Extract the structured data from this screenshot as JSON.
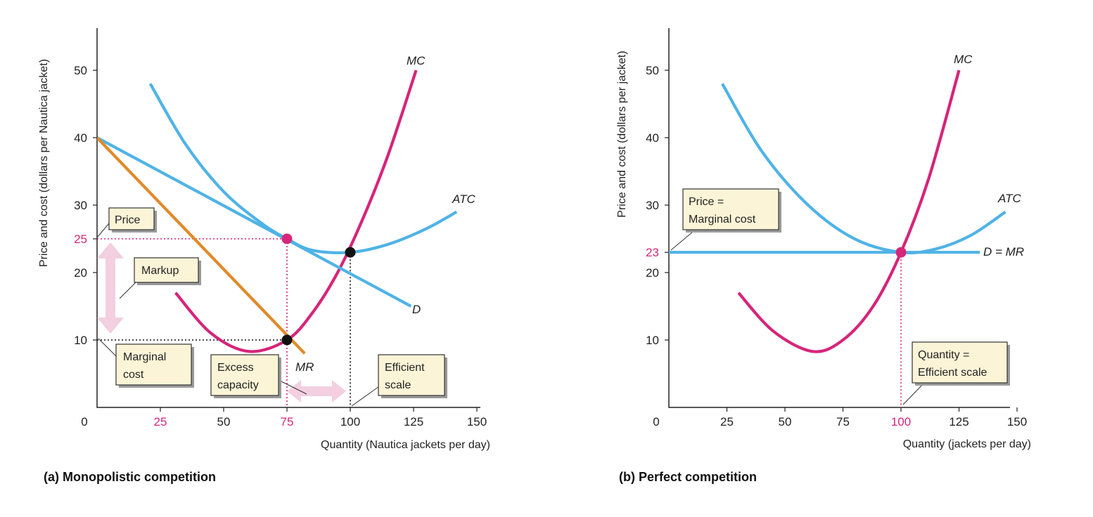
{
  "chart_data": [
    {
      "type": "line",
      "panel_caption": "(a) Monopolistic competition",
      "xlabel": "Quantity (Nautica jackets per day)",
      "ylabel": "Price and cost (dollars per Nautica jacket)",
      "xlim": [
        0,
        150
      ],
      "ylim": [
        0,
        55
      ],
      "x_ticks": [
        "0",
        "25",
        "50",
        "75",
        "100",
        "125",
        "150"
      ],
      "y_ticks": [
        "10",
        "20",
        "25",
        "30",
        "40",
        "50"
      ],
      "highlighted_ticks": [
        "75",
        "25"
      ],
      "series": [
        {
          "name": "MC",
          "color": "#d6257a",
          "x": [
            31,
            45,
            60,
            75,
            85,
            95,
            105,
            115,
            126
          ],
          "y": [
            17,
            11,
            8.3,
            10,
            14,
            20,
            28,
            37.5,
            50
          ]
        },
        {
          "name": "ATC",
          "color": "#4fb3e6",
          "x": [
            21,
            35,
            50,
            65,
            75,
            85,
            100,
            115,
            130,
            142
          ],
          "y": [
            48,
            39,
            32,
            27.3,
            25,
            23.3,
            23,
            24.2,
            26.5,
            29
          ]
        },
        {
          "name": "D",
          "color": "#4fb3e6",
          "x": [
            0,
            124
          ],
          "y": [
            40,
            15
          ]
        },
        {
          "name": "MR",
          "color": "#e08a2a",
          "x": [
            0,
            82
          ],
          "y": [
            40,
            8
          ]
        }
      ],
      "points": [
        {
          "x": 75,
          "y": 25,
          "color": "#d6257a"
        },
        {
          "x": 75,
          "y": 10,
          "color": "#111111"
        },
        {
          "x": 100,
          "y": 23,
          "color": "#111111"
        }
      ],
      "annotations": [
        "Price",
        "Markup",
        "Marginal cost",
        "Excess capacity",
        "Efficient scale"
      ]
    },
    {
      "type": "line",
      "panel_caption": "(b) Perfect competition",
      "xlabel": "Quantity (jackets per day)",
      "ylabel": "Price and cost (dollars per jacket)",
      "xlim": [
        0,
        150
      ],
      "ylim": [
        0,
        55
      ],
      "x_ticks": [
        "0",
        "25",
        "50",
        "75",
        "100",
        "125",
        "150"
      ],
      "y_ticks": [
        "10",
        "20",
        "23",
        "30",
        "40",
        "50"
      ],
      "highlighted_ticks": [
        "100",
        "23"
      ],
      "series": [
        {
          "name": "MC",
          "color": "#d6257a",
          "x": [
            30,
            45,
            62,
            75,
            88,
            100,
            112,
            125
          ],
          "y": [
            17,
            11.3,
            8.3,
            10,
            15,
            23,
            34,
            50
          ]
        },
        {
          "name": "ATC",
          "color": "#4fb3e6",
          "x": [
            23,
            40,
            60,
            80,
            100,
            115,
            130,
            145
          ],
          "y": [
            48,
            38,
            30,
            25,
            23,
            23.5,
            25.5,
            29
          ]
        },
        {
          "name": "D = MR",
          "color": "#4fb3e6",
          "x": [
            0,
            134
          ],
          "y": [
            23,
            23
          ]
        }
      ],
      "points": [
        {
          "x": 100,
          "y": 23,
          "color": "#d6257a"
        }
      ],
      "annotations": [
        "Price = Marginal cost",
        "Quantity = Efficient scale"
      ]
    }
  ],
  "labels": {
    "a": {
      "ylabel": "Price and cost (dollars per Nautica jacket)",
      "xlabel": "Quantity (Nautica jackets per day)",
      "caption": "(a) Monopolistic competition",
      "ticks_x": [
        "0",
        "25",
        "50",
        "75",
        "100",
        "125",
        "150"
      ],
      "ticks_y": [
        "10",
        "20",
        "25",
        "30",
        "40",
        "50"
      ],
      "mc": "MC",
      "atc": "ATC",
      "d": "D",
      "mr": "MR",
      "price": "Price",
      "markup": "Markup",
      "mc_box_1": "Marginal",
      "mc_box_2": "cost",
      "excess_1": "Excess",
      "excess_2": "capacity",
      "eff_1": "Efficient",
      "eff_2": "scale"
    },
    "b": {
      "ylabel": "Price and cost (dollars per jacket)",
      "xlabel": "Quantity (jackets per day)",
      "caption": "(b) Perfect competition",
      "ticks_x": [
        "0",
        "25",
        "50",
        "75",
        "100",
        "125",
        "150"
      ],
      "ticks_y": [
        "10",
        "20",
        "23",
        "30",
        "40",
        "50"
      ],
      "mc": "MC",
      "atc": "ATC",
      "dmr": "D = MR",
      "price_1": "Price =",
      "price_2": "Marginal cost",
      "qty_1": "Quantity =",
      "qty_2": "Efficient scale"
    }
  },
  "colors": {
    "mc": "#d6257a",
    "blue": "#4fb3e6",
    "mr": "#e08a2a",
    "arrow": "#f3cfe0",
    "box": "#fcf4d7"
  }
}
